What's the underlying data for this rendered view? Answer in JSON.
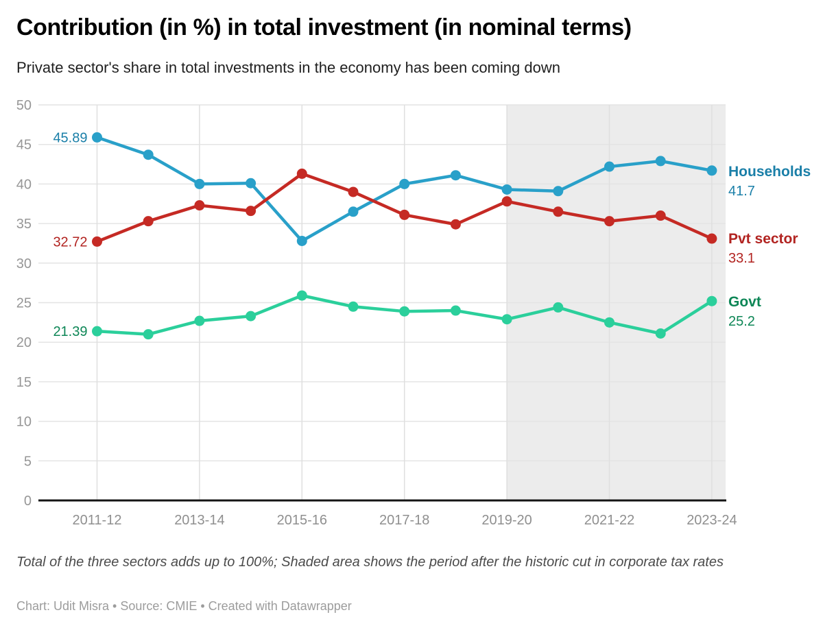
{
  "header": {
    "title": "Contribution (in %) in total investment (in nominal terms)",
    "subtitle": "Private sector's share in total investments in the economy has been coming down"
  },
  "chart_data": {
    "type": "line",
    "title": "Contribution (in %) in total investment (in nominal terms)",
    "subtitle": "Private sector's share in total investments in the economy has been coming down",
    "x": [
      "2011-12",
      "2012-13",
      "2013-14",
      "2014-15",
      "2015-16",
      "2016-17",
      "2017-18",
      "2018-19",
      "2019-20",
      "2020-21",
      "2021-22",
      "2022-23",
      "2023-24"
    ],
    "x_axis_tick_labels": [
      "2011-12",
      "2013-14",
      "2015-16",
      "2017-18",
      "2019-20",
      "2021-22",
      "2023-24"
    ],
    "y_ticks": [
      0,
      5,
      10,
      15,
      20,
      25,
      30,
      35,
      40,
      45,
      50
    ],
    "ylim": [
      0,
      50
    ],
    "grid": "on",
    "legend_position": "right-of-line-ends",
    "series": [
      {
        "name": "Households",
        "color": "#29a0c9",
        "label_color": "#1a7fa8",
        "start_label": "45.89",
        "end_label": "41.7",
        "values": [
          45.89,
          43.7,
          40.0,
          40.1,
          32.8,
          36.5,
          40.0,
          41.1,
          39.3,
          39.1,
          42.2,
          42.9,
          41.7
        ]
      },
      {
        "name": "Pvt sector",
        "color": "#c52a24",
        "label_color": "#b22421",
        "start_label": "32.72",
        "end_label": "33.1",
        "values": [
          32.72,
          35.3,
          37.3,
          36.6,
          41.3,
          39.0,
          36.1,
          34.9,
          37.8,
          36.5,
          35.3,
          36.0,
          33.1
        ]
      },
      {
        "name": "Govt",
        "color": "#2bcf9b",
        "label_color": "#0d8656",
        "start_label": "21.39",
        "end_label": "25.2",
        "values": [
          21.39,
          21.0,
          22.7,
          23.3,
          25.9,
          24.5,
          23.9,
          24.0,
          22.9,
          24.4,
          22.5,
          21.1,
          25.2
        ]
      }
    ],
    "shaded_region": {
      "from": "2019-20",
      "to": "2023-24",
      "color": "#ececec",
      "meaning": "Shaded area shows the period after the historic cut in corporate tax rates"
    }
  },
  "footer": {
    "note": "Total of the three sectors adds up to 100%; Shaded area shows the period after the historic cut in corporate tax rates",
    "byline": "Chart: Udit Misra • Source: CMIE • Created with Datawrapper"
  }
}
